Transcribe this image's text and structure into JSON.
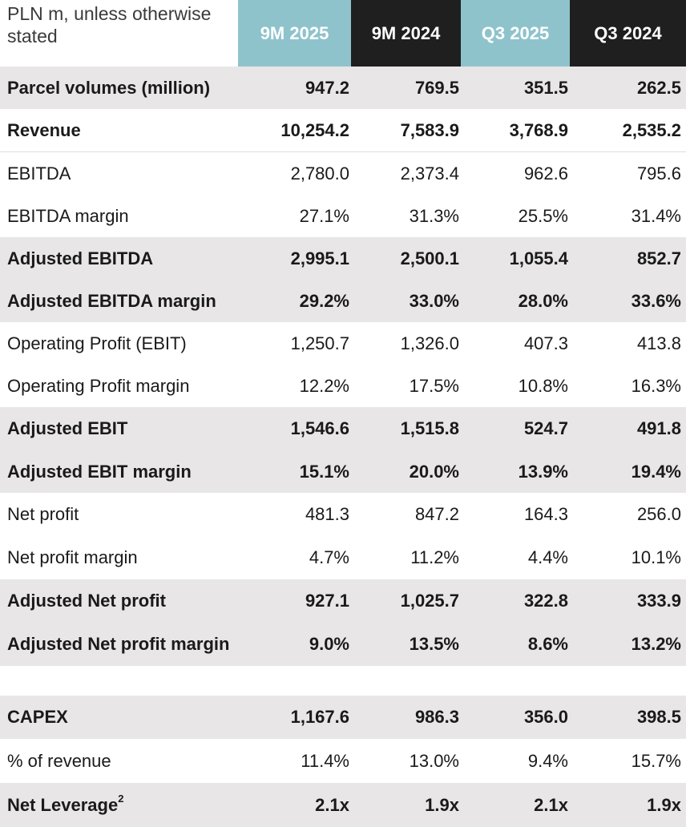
{
  "header": {
    "unit_label": "PLN m, unless otherwise stated",
    "columns": [
      "9M 2025",
      "9M 2024",
      "Q3 2025",
      "Q3 2024"
    ]
  },
  "rows": [
    {
      "label": "Parcel volumes (million)",
      "values": [
        "947.2",
        "769.5",
        "351.5",
        "262.5"
      ]
    },
    {
      "label": "Revenue",
      "values": [
        "10,254.2",
        "7,583.9",
        "3,768.9",
        "2,535.2"
      ]
    },
    {
      "label": "EBITDA",
      "values": [
        "2,780.0",
        "2,373.4",
        "962.6",
        "795.6"
      ]
    },
    {
      "label": "EBITDA margin",
      "values": [
        "27.1%",
        "31.3%",
        "25.5%",
        "31.4%"
      ]
    },
    {
      "label": "Adjusted EBITDA",
      "values": [
        "2,995.1",
        "2,500.1",
        "1,055.4",
        "852.7"
      ]
    },
    {
      "label": "Adjusted EBITDA margin",
      "values": [
        "29.2%",
        "33.0%",
        "28.0%",
        "33.6%"
      ]
    },
    {
      "label": "Operating Profit (EBIT)",
      "values": [
        "1,250.7",
        "1,326.0",
        "407.3",
        "413.8"
      ]
    },
    {
      "label": "Operating Profit margin",
      "values": [
        "12.2%",
        "17.5%",
        "10.8%",
        "16.3%"
      ]
    },
    {
      "label": "Adjusted EBIT",
      "values": [
        "1,546.6",
        "1,515.8",
        "524.7",
        "491.8"
      ]
    },
    {
      "label": "Adjusted EBIT margin",
      "values": [
        "15.1%",
        "20.0%",
        "13.9%",
        "19.4%"
      ]
    },
    {
      "label": "Net profit",
      "values": [
        "481.3",
        "847.2",
        "164.3",
        "256.0"
      ]
    },
    {
      "label": "Net profit margin",
      "values": [
        "4.7%",
        "11.2%",
        "4.4%",
        "10.1%"
      ]
    },
    {
      "label": "Adjusted Net profit",
      "values": [
        "927.1",
        "1,025.7",
        "322.8",
        "333.9"
      ]
    },
    {
      "label": "Adjusted Net profit margin",
      "values": [
        "9.0%",
        "13.5%",
        "8.6%",
        "13.2%"
      ]
    },
    {
      "label": "CAPEX",
      "values": [
        "1,167.6",
        "986.3",
        "356.0",
        "398.5"
      ]
    },
    {
      "label": "% of revenue",
      "values": [
        "11.4%",
        "13.0%",
        "9.4%",
        "15.7%"
      ]
    },
    {
      "label": "Net Leverage",
      "footnote": "2",
      "values": [
        "2.1x",
        "1.9x",
        "2.1x",
        "1.9x"
      ]
    }
  ],
  "colors": {
    "header_light": "#8fc3cc",
    "header_dark": "#1f1f1f",
    "row_shade": "#e8e6e6",
    "text": "#1a1a1a"
  }
}
